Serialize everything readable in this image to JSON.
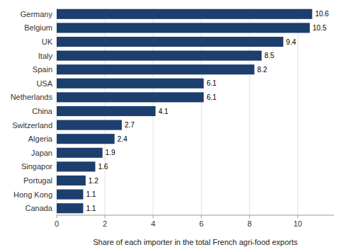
{
  "chart_data": {
    "type": "bar",
    "orientation": "horizontal",
    "categories": [
      "Germany",
      "Belgium",
      "UK",
      "Italy",
      "Spain",
      "USA",
      "Netherlands",
      "China",
      "Switzerland",
      "Algeria",
      "Japan",
      "Singapor",
      "Portugal",
      "Hong Kong",
      "Canada"
    ],
    "values": [
      10.6,
      10.5,
      9.4,
      8.5,
      8.2,
      6.1,
      6.1,
      4.1,
      2.7,
      2.4,
      1.9,
      1.6,
      1.2,
      1.1,
      1.1
    ],
    "color": "#1d3f6e",
    "xlabel": "Share of each importer in the total French agri-food exports",
    "xlim": [
      0,
      11.5
    ],
    "xticks": [
      0,
      2,
      4,
      6,
      8,
      10
    ],
    "grid": true,
    "data_labels": true
  }
}
